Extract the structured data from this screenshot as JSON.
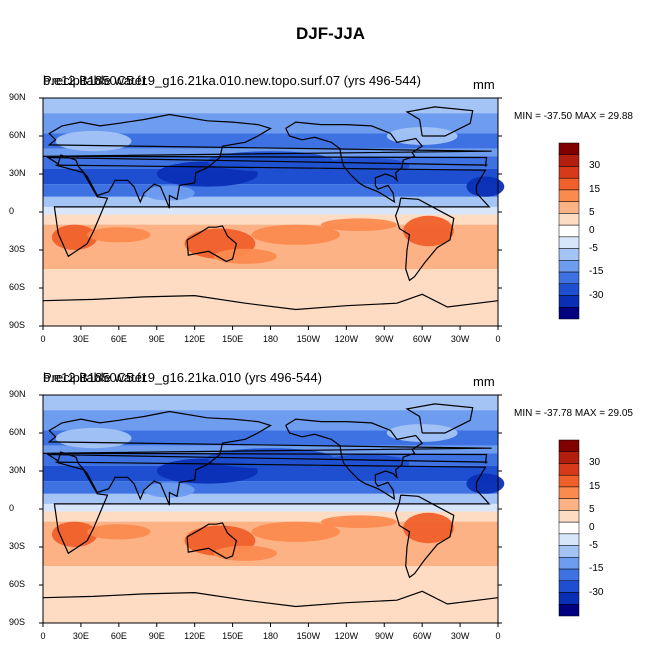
{
  "title": "DJF-JJA",
  "lat_ticks": [
    "90N",
    "60N",
    "30N",
    "0",
    "30S",
    "60S",
    "90S"
  ],
  "lon_ticks": [
    "0",
    "30E",
    "60E",
    "90E",
    "120E",
    "150E",
    "180",
    "150W",
    "120W",
    "90W",
    "60W",
    "30W",
    "0"
  ],
  "colorbar": {
    "labels": [
      "30",
      "15",
      "5",
      "0",
      "-5",
      "-15",
      "-30"
    ],
    "colors": [
      "#800000",
      "#b41e0e",
      "#d73a18",
      "#f0602a",
      "#fb8a4f",
      "#fdb285",
      "#fedcc3",
      "#ffffff",
      "#d7e6fb",
      "#a4c4f5",
      "#6e9df0",
      "#3e72e3",
      "#1d4fd0",
      "#0a2fb5",
      "#000080"
    ]
  },
  "panels": [
    {
      "title_overlap_a": "Precipitable water",
      "title_overlap_b": "b.e12.B1850C5.f19_g16.21ka.010.new.topo.surf.07 (yrs 496-544)",
      "units": "mm",
      "minmax": "MIN = -37.50 MAX =  29.88"
    },
    {
      "title_overlap_a": "Precipitable water",
      "title_overlap_b": "b.e12.B1850C5.f19_g16.21ka.010 (yrs 496-544)",
      "units": "mm",
      "minmax": "MIN = -37.78 MAX =  29.05"
    }
  ]
}
